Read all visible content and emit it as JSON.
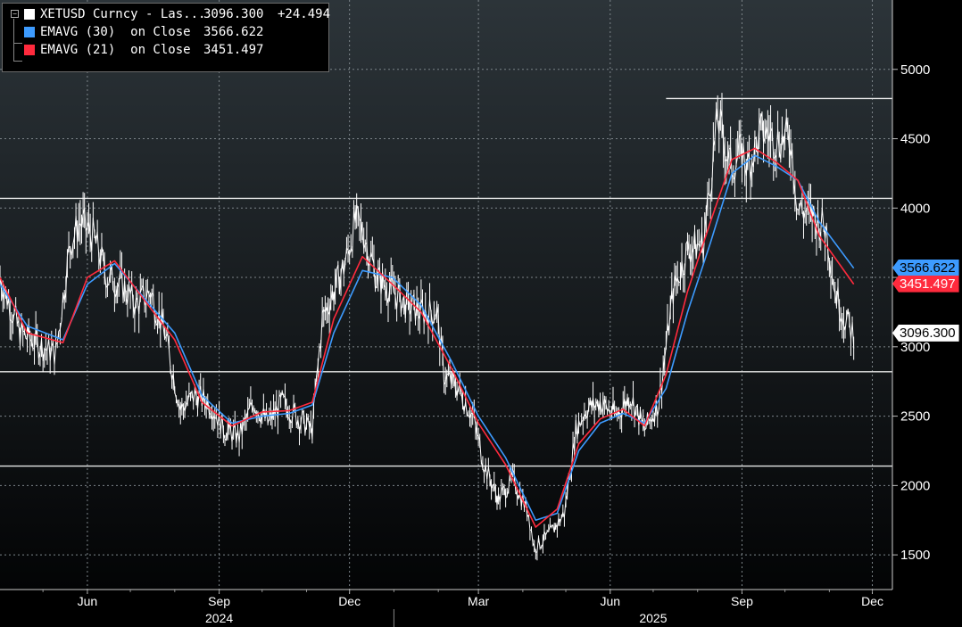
{
  "legend": {
    "items": [
      {
        "label": "XETUSD Curncy - Las...",
        "value": "3096.300",
        "change": "+24.494",
        "color": "#ffffff"
      },
      {
        "label": "EMAVG (30)  on Close",
        "value": "3566.622",
        "color": "#3d9bff"
      },
      {
        "label": "EMAVG (21)  on Close",
        "value": "3451.497",
        "color": "#ff2a3d"
      }
    ]
  },
  "price_tags": [
    {
      "text": "3566.622",
      "value": 3566.622,
      "bg": "#3d9bff",
      "fg": "#000000"
    },
    {
      "text": "3451.497",
      "value": 3451.497,
      "bg": "#ff2a3d",
      "fg": "#ffffff"
    },
    {
      "text": "3096.300",
      "value": 3096.3,
      "bg": "#ffffff",
      "fg": "#000000"
    }
  ],
  "chart_data": {
    "type": "line",
    "ticker": "XETUSD Curncy",
    "x_start": "2024-04-01",
    "x_end": "2025-12-15",
    "ylim": [
      1250,
      5500
    ],
    "grid": true,
    "y_ticks": [
      {
        "value": 1500,
        "label": "1500"
      },
      {
        "value": 2000,
        "label": "2000"
      },
      {
        "value": 2500,
        "label": "2500"
      },
      {
        "value": 3000,
        "label": "3000"
      },
      {
        "value": 3500,
        "label": ""
      },
      {
        "value": 4000,
        "label": "4000"
      },
      {
        "value": 4500,
        "label": "4500"
      },
      {
        "value": 5000,
        "label": "5000"
      }
    ],
    "x_ticks": [
      {
        "date": "2024-06-01",
        "label": "Jun"
      },
      {
        "date": "2024-09-01",
        "label": "Sep"
      },
      {
        "date": "2024-12-01",
        "label": "Dec"
      },
      {
        "date": "2025-03-01",
        "label": "Mar"
      },
      {
        "date": "2025-06-01",
        "label": "Jun"
      },
      {
        "date": "2025-09-01",
        "label": "Sep"
      },
      {
        "date": "2025-12-01",
        "label": "Dec"
      }
    ],
    "year_labels": [
      {
        "date": "2024-09-01",
        "label": "2024"
      },
      {
        "date": "2025-07-01",
        "label": "2025"
      }
    ],
    "year_divider": "2025-01-01",
    "horizontal_lines": [
      {
        "value": 4790,
        "from": "2025-07-10"
      },
      {
        "value": 4070,
        "from": "2024-04-01"
      },
      {
        "value": 2820,
        "from": "2024-04-01"
      },
      {
        "value": 2140,
        "from": "2024-04-01"
      }
    ],
    "series": [
      {
        "name": "XETUSD Curncy - Las...",
        "color": "#ffffff",
        "x": [
          "2024-04-01",
          "2024-04-15",
          "2024-05-01",
          "2024-05-10",
          "2024-05-20",
          "2024-05-27",
          "2024-06-05",
          "2024-06-15",
          "2024-06-25",
          "2024-07-05",
          "2024-07-15",
          "2024-07-25",
          "2024-08-05",
          "2024-08-15",
          "2024-08-25",
          "2024-09-05",
          "2024-09-15",
          "2024-09-25",
          "2024-10-05",
          "2024-10-15",
          "2024-10-25",
          "2024-11-05",
          "2024-11-12",
          "2024-11-20",
          "2024-11-28",
          "2024-12-05",
          "2024-12-10",
          "2024-12-20",
          "2024-12-31",
          "2025-01-10",
          "2025-01-20",
          "2025-01-31",
          "2025-02-05",
          "2025-02-15",
          "2025-02-25",
          "2025-03-05",
          "2025-03-15",
          "2025-03-25",
          "2025-04-05",
          "2025-04-09",
          "2025-04-20",
          "2025-04-30",
          "2025-05-08",
          "2025-05-15",
          "2025-05-25",
          "2025-06-05",
          "2025-06-15",
          "2025-06-25",
          "2025-07-05",
          "2025-07-15",
          "2025-07-25",
          "2025-08-05",
          "2025-08-15",
          "2025-08-24",
          "2025-09-01",
          "2025-09-05",
          "2025-09-15",
          "2025-09-25",
          "2025-10-05",
          "2025-10-10",
          "2025-10-20",
          "2025-10-30",
          "2025-11-05",
          "2025-11-12",
          "2025-11-18"
        ],
        "y": [
          3500,
          3100,
          3000,
          2950,
          3750,
          3900,
          3800,
          3500,
          3450,
          3300,
          3400,
          3100,
          2550,
          2650,
          2600,
          2400,
          2350,
          2600,
          2450,
          2600,
          2500,
          2400,
          3200,
          3400,
          3600,
          3900,
          3850,
          3500,
          3400,
          3300,
          3250,
          3250,
          2800,
          2700,
          2500,
          2150,
          1900,
          2050,
          1800,
          1550,
          1650,
          1800,
          2400,
          2550,
          2600,
          2500,
          2650,
          2400,
          2600,
          3400,
          3700,
          3750,
          4650,
          4300,
          4400,
          4300,
          4550,
          4500,
          4500,
          4000,
          3950,
          3850,
          3400,
          3200,
          3096.3
        ]
      },
      {
        "name": "EMAVG (30)  on Close",
        "color": "#3d9bff",
        "x": [
          "2024-04-01",
          "2024-04-20",
          "2024-05-15",
          "2024-06-01",
          "2024-06-20",
          "2024-07-15",
          "2024-08-01",
          "2024-08-20",
          "2024-09-10",
          "2024-10-01",
          "2024-10-20",
          "2024-11-05",
          "2024-11-20",
          "2024-12-10",
          "2024-12-31",
          "2025-01-20",
          "2025-02-10",
          "2025-03-01",
          "2025-03-20",
          "2025-04-10",
          "2025-04-25",
          "2025-05-10",
          "2025-05-25",
          "2025-06-10",
          "2025-06-25",
          "2025-07-10",
          "2025-07-25",
          "2025-08-10",
          "2025-08-25",
          "2025-09-10",
          "2025-09-25",
          "2025-10-10",
          "2025-10-25",
          "2025-11-18"
        ],
        "y": [
          3450,
          3150,
          3050,
          3450,
          3600,
          3300,
          3100,
          2650,
          2450,
          2500,
          2520,
          2580,
          3100,
          3550,
          3500,
          3300,
          2900,
          2500,
          2200,
          1750,
          1800,
          2250,
          2450,
          2520,
          2450,
          2700,
          3250,
          3750,
          4250,
          4380,
          4300,
          4200,
          3900,
          3566.622
        ]
      },
      {
        "name": "EMAVG (21)  on Close",
        "color": "#ff2a3d",
        "x": [
          "2024-04-01",
          "2024-04-20",
          "2024-05-15",
          "2024-06-01",
          "2024-06-20",
          "2024-07-15",
          "2024-08-01",
          "2024-08-20",
          "2024-09-10",
          "2024-10-01",
          "2024-10-20",
          "2024-11-05",
          "2024-11-20",
          "2024-12-10",
          "2024-12-31",
          "2025-01-20",
          "2025-02-10",
          "2025-03-01",
          "2025-03-20",
          "2025-04-10",
          "2025-04-25",
          "2025-05-10",
          "2025-05-25",
          "2025-06-10",
          "2025-06-25",
          "2025-07-10",
          "2025-07-25",
          "2025-08-10",
          "2025-08-25",
          "2025-09-10",
          "2025-09-25",
          "2025-10-10",
          "2025-10-25",
          "2025-11-18"
        ],
        "y": [
          3500,
          3100,
          3030,
          3500,
          3620,
          3280,
          3050,
          2600,
          2430,
          2530,
          2540,
          2600,
          3200,
          3650,
          3450,
          3250,
          2850,
          2450,
          2150,
          1700,
          1830,
          2300,
          2480,
          2550,
          2430,
          2800,
          3400,
          3900,
          4350,
          4430,
          4330,
          4200,
          3800,
          3451.497
        ]
      }
    ]
  }
}
